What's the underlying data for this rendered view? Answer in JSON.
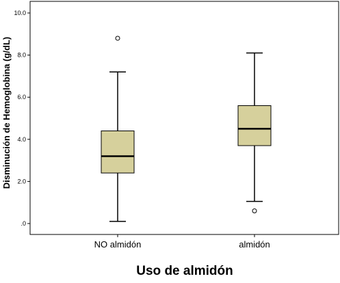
{
  "chart_data": {
    "type": "boxplot",
    "xlabel": "Uso de almidón",
    "ylabel": "Disminución de Hemoglobina (g/dL)",
    "ylim": [
      0,
      10
    ],
    "yticks": [
      {
        "value": 0,
        "label": ".0"
      },
      {
        "value": 2,
        "label": "2.0"
      },
      {
        "value": 4,
        "label": "4.0"
      },
      {
        "value": 6,
        "label": "6.0"
      },
      {
        "value": 8,
        "label": "8.0"
      },
      {
        "value": 10,
        "label": "10.0"
      }
    ],
    "categories": [
      "NO almidón",
      "almidón"
    ],
    "boxes": [
      {
        "category": "NO almidón",
        "min": 0.1,
        "q1": 2.4,
        "median": 3.2,
        "q3": 4.4,
        "max": 7.2,
        "outliers": [
          8.8
        ]
      },
      {
        "category": "almidón",
        "min": 1.05,
        "q1": 3.7,
        "median": 4.5,
        "q3": 5.6,
        "max": 8.1,
        "outliers": [
          0.6
        ]
      }
    ],
    "grid": false,
    "legend": "none",
    "box_color": "#d6d09c"
  }
}
